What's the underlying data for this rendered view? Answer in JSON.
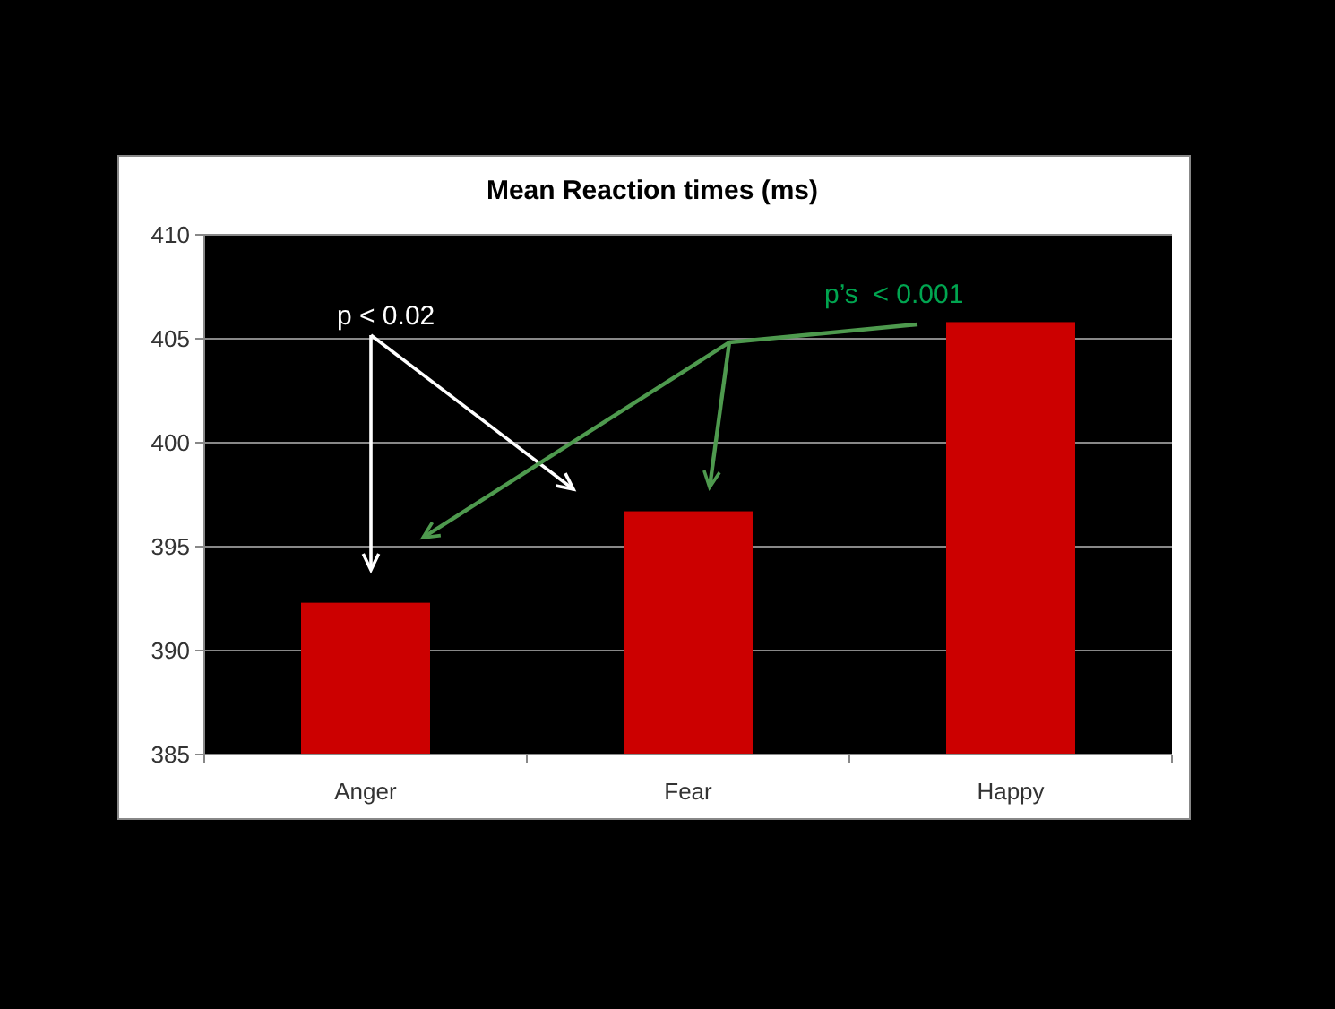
{
  "chart_data": {
    "type": "bar",
    "title": "Mean Reaction times (ms)",
    "categories": [
      "Anger",
      "Fear",
      "Happy"
    ],
    "values": [
      392.3,
      396.7,
      405.8
    ],
    "color": "#cc0000",
    "ylim": [
      385,
      410
    ],
    "yticks": [
      385,
      390,
      395,
      400,
      405,
      410
    ],
    "grid": "y",
    "annotations": [
      "p < 0.02",
      "p’s  < 0.001"
    ]
  }
}
